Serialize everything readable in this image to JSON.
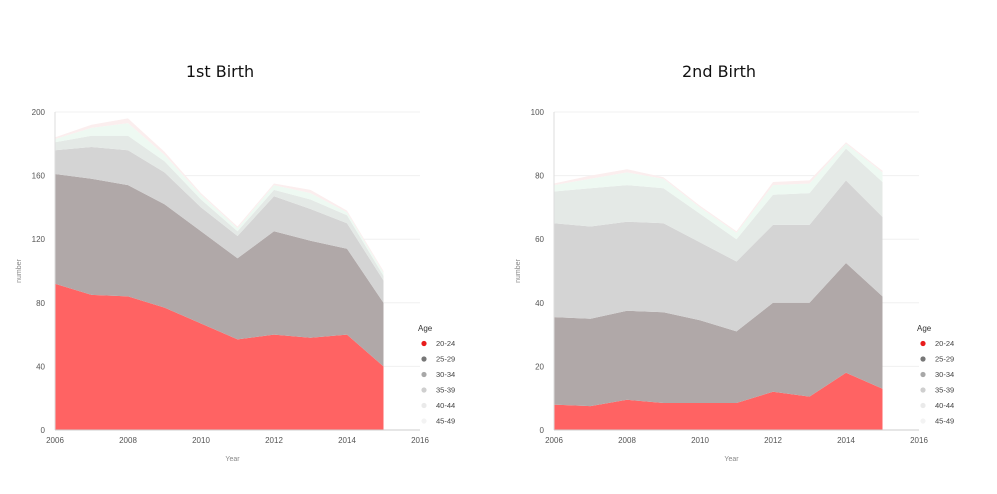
{
  "chart_data": [
    {
      "type": "area",
      "title": "1st Birth",
      "xlabel": "Year",
      "ylabel": "number",
      "x": [
        2006,
        2007,
        2008,
        2009,
        2010,
        2011,
        2012,
        2013,
        2014,
        2015
      ],
      "xlim": [
        2006,
        2016
      ],
      "ylim": [
        0,
        200
      ],
      "xticks": [
        2006,
        2008,
        2010,
        2012,
        2014,
        2016
      ],
      "yticks": [
        0,
        40,
        80,
        120,
        160,
        200
      ],
      "grid": true,
      "stacked": true,
      "legend_title": "Age",
      "legend_position": "right",
      "series": [
        {
          "name": "20-24",
          "color": "#ff6363",
          "dot": "#e81c1c",
          "values": [
            92,
            85,
            84,
            77,
            67,
            57,
            60,
            58,
            60,
            40
          ]
        },
        {
          "name": "25-29",
          "color": "#b0a8a8",
          "dot": "#777777",
          "values": [
            69,
            73,
            70,
            65,
            58,
            51,
            65,
            61,
            54,
            40
          ]
        },
        {
          "name": "30-34",
          "color": "#d4d4d4",
          "dot": "#a8a8a8",
          "values": [
            15,
            20,
            22,
            20,
            15,
            14,
            22,
            20,
            16,
            14
          ]
        },
        {
          "name": "35-39",
          "color": "#e4e9e6",
          "dot": "#cfcfcf",
          "values": [
            5,
            7,
            9,
            7,
            5,
            3,
            4,
            6,
            5,
            3
          ]
        },
        {
          "name": "40-44",
          "color": "#eef9f2",
          "dot": "#eaeaea",
          "values": [
            2,
            5,
            8,
            4,
            3,
            2,
            3,
            4,
            2,
            2
          ]
        },
        {
          "name": "45-49",
          "color": "#fbeeee",
          "dot": "#f3f3f3",
          "values": [
            1,
            2,
            3,
            2,
            1,
            1,
            1,
            2,
            1,
            1
          ]
        }
      ]
    },
    {
      "type": "area",
      "title": "2nd Birth",
      "xlabel": "Year",
      "ylabel": "number",
      "x": [
        2006,
        2007,
        2008,
        2009,
        2010,
        2011,
        2012,
        2013,
        2014,
        2015
      ],
      "xlim": [
        2006,
        2016
      ],
      "ylim": [
        0,
        100
      ],
      "xticks": [
        2006,
        2008,
        2010,
        2012,
        2014,
        2016
      ],
      "yticks": [
        0,
        20,
        40,
        60,
        80,
        100
      ],
      "grid": true,
      "stacked": true,
      "legend_title": "Age",
      "legend_position": "right",
      "series": [
        {
          "name": "20-24",
          "color": "#ff6363",
          "dot": "#e81c1c",
          "values": [
            8,
            7.5,
            9.5,
            8.5,
            8.5,
            8.5,
            12,
            10.5,
            18,
            13
          ]
        },
        {
          "name": "25-29",
          "color": "#b0a8a8",
          "dot": "#777777",
          "values": [
            27.5,
            27.5,
            28,
            28.5,
            26,
            22.5,
            28,
            29.5,
            34.5,
            29
          ]
        },
        {
          "name": "30-34",
          "color": "#d4d4d4",
          "dot": "#a8a8a8",
          "values": [
            29.5,
            29,
            28,
            28,
            24.5,
            22,
            24.5,
            24.5,
            26,
            25
          ]
        },
        {
          "name": "35-39",
          "color": "#e4e9e6",
          "dot": "#cfcfcf",
          "values": [
            10,
            12,
            11.5,
            11,
            9,
            7,
            9.5,
            10,
            10,
            11
          ]
        },
        {
          "name": "40-44",
          "color": "#eef9f2",
          "dot": "#eaeaea",
          "values": [
            2,
            3,
            4,
            3,
            2,
            2,
            3,
            3,
            1.5,
            3
          ]
        },
        {
          "name": "45-49",
          "color": "#fbeeee",
          "dot": "#f3f3f3",
          "values": [
            0.5,
            1,
            1,
            0.5,
            0.5,
            0.5,
            1,
            1,
            0.5,
            0.5
          ]
        }
      ]
    }
  ]
}
